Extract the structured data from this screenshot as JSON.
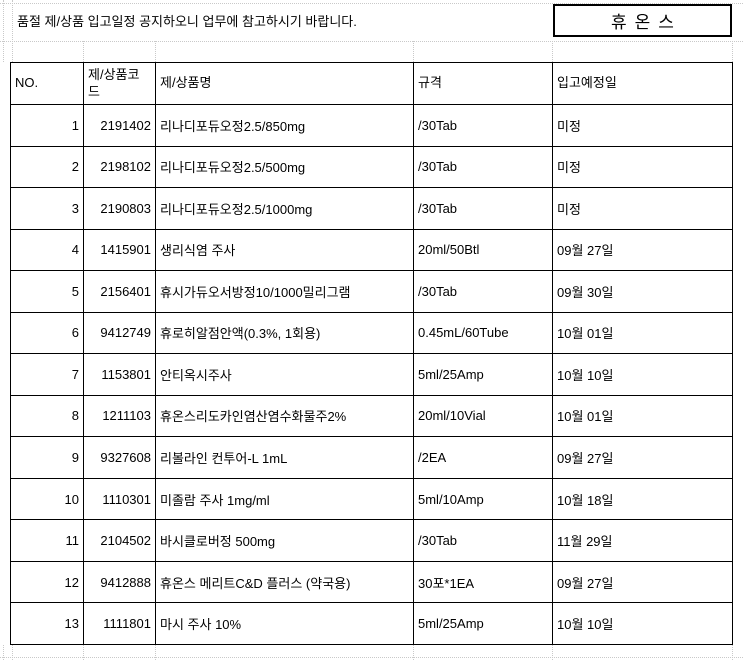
{
  "notice": {
    "text": "품절 제/상품 입고일정 공지하오니 업무에 참고하시기 바랍니다."
  },
  "company": {
    "name": "휴온스"
  },
  "table": {
    "columns": [
      {
        "key": "no",
        "label": "NO."
      },
      {
        "key": "code",
        "label": "제/상품코드"
      },
      {
        "key": "name",
        "label": "제/상품명"
      },
      {
        "key": "spec",
        "label": "규격"
      },
      {
        "key": "due",
        "label": "입고예정일"
      }
    ],
    "rows": [
      {
        "no": "1",
        "code": "2191402",
        "name": "리나디포듀오정2.5/850mg",
        "spec": "/30Tab",
        "due": "미정"
      },
      {
        "no": "2",
        "code": "2198102",
        "name": "리나디포듀오정2.5/500mg",
        "spec": "/30Tab",
        "due": "미정"
      },
      {
        "no": "3",
        "code": "2190803",
        "name": "리나디포듀오정2.5/1000mg",
        "spec": "/30Tab",
        "due": "미정"
      },
      {
        "no": "4",
        "code": "1415901",
        "name": "생리식염 주사",
        "spec": "20ml/50Btl",
        "due": "09월 27일"
      },
      {
        "no": "5",
        "code": "2156401",
        "name": "휴시가듀오서방정10/1000밀리그램",
        "spec": "/30Tab",
        "due": "09월 30일"
      },
      {
        "no": "6",
        "code": "9412749",
        "name": "휴로히알점안액(0.3%, 1회용)",
        "spec": "0.45mL/60Tube",
        "due": "10월 01일"
      },
      {
        "no": "7",
        "code": "1153801",
        "name": "안티옥시주사",
        "spec": "5ml/25Amp",
        "due": "10월 10일"
      },
      {
        "no": "8",
        "code": "1211103",
        "name": "휴온스리도카인염산염수화물주2%",
        "spec": "20ml/10Vial",
        "due": "10월 01일"
      },
      {
        "no": "9",
        "code": "9327608",
        "name": "리볼라인 컨투어-L 1mL",
        "spec": "/2EA",
        "due": "09월 27일"
      },
      {
        "no": "10",
        "code": "1110301",
        "name": "미졸람 주사 1mg/ml",
        "spec": "5ml/10Amp",
        "due": "10월 18일"
      },
      {
        "no": "11",
        "code": "2104502",
        "name": "바시클로버정 500mg",
        "spec": "/30Tab",
        "due": "11월 29일"
      },
      {
        "no": "12",
        "code": "9412888",
        "name": "휴온스 메리트C&D 플러스 (약국용)",
        "spec": "30포*1EA",
        "due": "09월 27일"
      },
      {
        "no": "13",
        "code": "1111801",
        "name": "마시 주사 10%",
        "spec": "5ml/25Amp",
        "due": "10월 10일"
      }
    ]
  },
  "colors": {
    "text": "#000000",
    "table_border": "#000000",
    "gridline": "#c9c9c9",
    "background": "#ffffff"
  }
}
